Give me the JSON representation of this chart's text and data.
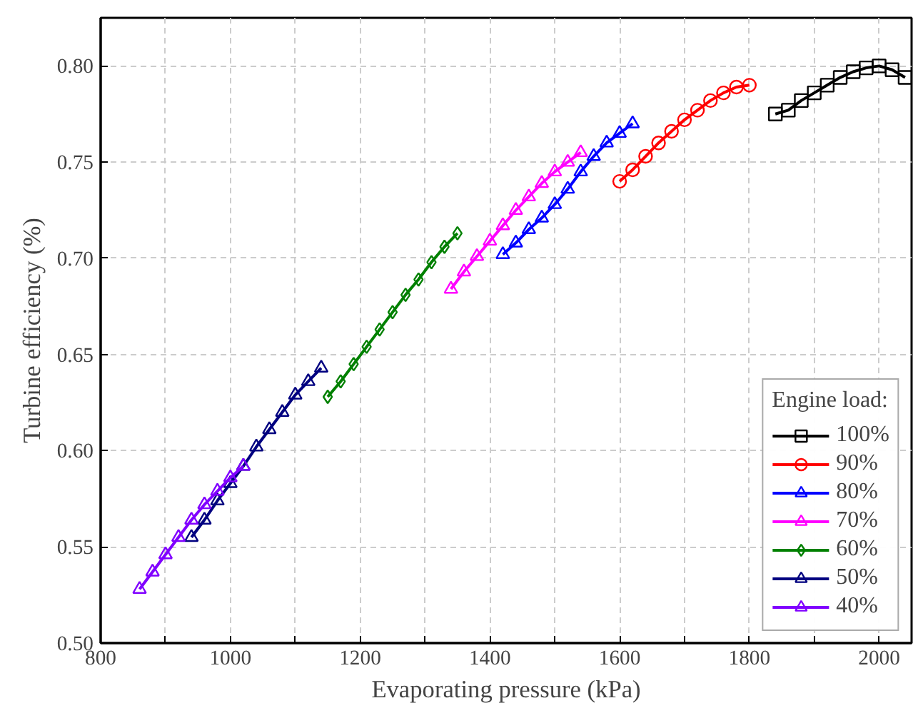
{
  "chart_data": {
    "type": "line",
    "xlabel": "Evaporating pressure (kPa)",
    "ylabel": "Turbine efficiency (%)",
    "legend_title": "Engine load:",
    "legend": "bottom right",
    "grid": true,
    "line_style": "solid",
    "xlim": [
      800,
      2050
    ],
    "ylim": [
      0.5,
      0.825
    ],
    "xticks": [
      800,
      {
        "value": 900,
        "label": null
      },
      1000,
      {
        "value": 1100,
        "label": null
      },
      1200,
      {
        "value": 1300,
        "label": null
      },
      1400,
      {
        "value": 1500,
        "label": null
      },
      1600,
      {
        "value": 1700,
        "label": null
      },
      1800,
      {
        "value": 1900,
        "label": null
      },
      2000
    ],
    "yticks": [
      {
        "value": 0.5,
        "label": "0.50"
      },
      0.55,
      {
        "value": 0.6,
        "label": "0.60"
      },
      0.65,
      {
        "value": 0.7,
        "label": "0.70"
      },
      0.75,
      {
        "value": 0.8,
        "label": "0.80"
      }
    ],
    "series": [
      {
        "name": "100%",
        "color": "#000000",
        "marker": "square",
        "x": [
          1840,
          1860,
          1880,
          1900,
          1920,
          1940,
          1960,
          1980,
          2000,
          2020,
          2040
        ],
        "values": [
          0.775,
          0.777,
          0.782,
          0.786,
          0.79,
          0.794,
          0.797,
          0.799,
          0.8,
          0.798,
          0.794
        ]
      },
      {
        "name": "90%",
        "color": "#ff0000",
        "marker": "circle",
        "x": [
          1600,
          1620,
          1640,
          1660,
          1680,
          1700,
          1720,
          1740,
          1760,
          1780,
          1800
        ],
        "values": [
          0.74,
          0.746,
          0.753,
          0.76,
          0.766,
          0.772,
          0.777,
          0.782,
          0.786,
          0.789,
          0.79
        ]
      },
      {
        "name": "80%",
        "color": "#0000ff",
        "marker": "triangle",
        "x": [
          1420,
          1440,
          1460,
          1480,
          1500,
          1520,
          1540,
          1560,
          1580,
          1600,
          1620
        ],
        "values": [
          0.702,
          0.708,
          0.715,
          0.721,
          0.728,
          0.736,
          0.745,
          0.753,
          0.76,
          0.765,
          0.77
        ]
      },
      {
        "name": "70%",
        "color": "#ff00ff",
        "marker": "triangle",
        "x": [
          1340,
          1360,
          1380,
          1400,
          1420,
          1440,
          1460,
          1480,
          1500,
          1520,
          1540
        ],
        "values": [
          0.684,
          0.693,
          0.701,
          0.709,
          0.717,
          0.725,
          0.732,
          0.739,
          0.745,
          0.75,
          0.755
        ]
      },
      {
        "name": "60%",
        "color": "#008000",
        "marker": "diamond",
        "x": [
          1150,
          1170,
          1190,
          1210,
          1230,
          1250,
          1270,
          1290,
          1310,
          1330,
          1350
        ],
        "values": [
          0.628,
          0.636,
          0.645,
          0.654,
          0.663,
          0.672,
          0.681,
          0.689,
          0.698,
          0.706,
          0.713
        ]
      },
      {
        "name": "50%",
        "color": "#000080",
        "marker": "triangle",
        "x": [
          940,
          960,
          980,
          1000,
          1020,
          1040,
          1060,
          1080,
          1100,
          1120,
          1140
        ],
        "values": [
          0.555,
          0.564,
          0.574,
          0.583,
          0.592,
          0.602,
          0.611,
          0.62,
          0.629,
          0.636,
          0.643
        ]
      },
      {
        "name": "40%",
        "color": "#8000ff",
        "marker": "triangle",
        "x": [
          860,
          880,
          900,
          920,
          940,
          960,
          980,
          1000,
          1020
        ],
        "values": [
          0.528,
          0.537,
          0.546,
          0.555,
          0.564,
          0.572,
          0.579,
          0.586,
          0.592
        ]
      }
    ]
  }
}
